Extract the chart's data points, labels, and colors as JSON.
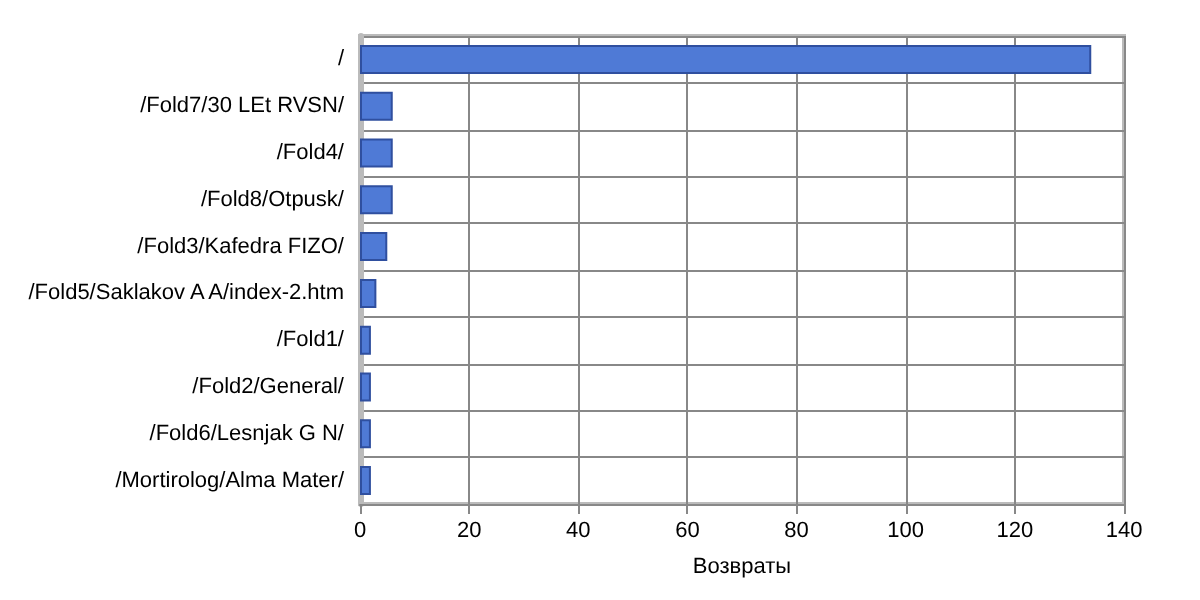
{
  "chart_data": {
    "type": "bar",
    "orientation": "horizontal",
    "xlabel": "Возвраты",
    "categories": [
      "/",
      "/Fold7/30 LEt RVSN/",
      "/Fold4/",
      "/Fold8/Otpusk/",
      "/Fold3/Kafedra FIZO/",
      "/Fold5/Saklakov A A/index-2.htm",
      "/Fold1/",
      "/Fold2/General/",
      "/Fold6/Lesnjak G N/",
      "/Mortirolog/Alma Mater/"
    ],
    "values": [
      134,
      6,
      6,
      6,
      5,
      3,
      2,
      2,
      2,
      2
    ],
    "color": "#4f7ad6",
    "xlim": [
      0,
      140
    ],
    "xticks": [
      0,
      20,
      40,
      60,
      80,
      100,
      120,
      140
    ],
    "grid": true
  }
}
